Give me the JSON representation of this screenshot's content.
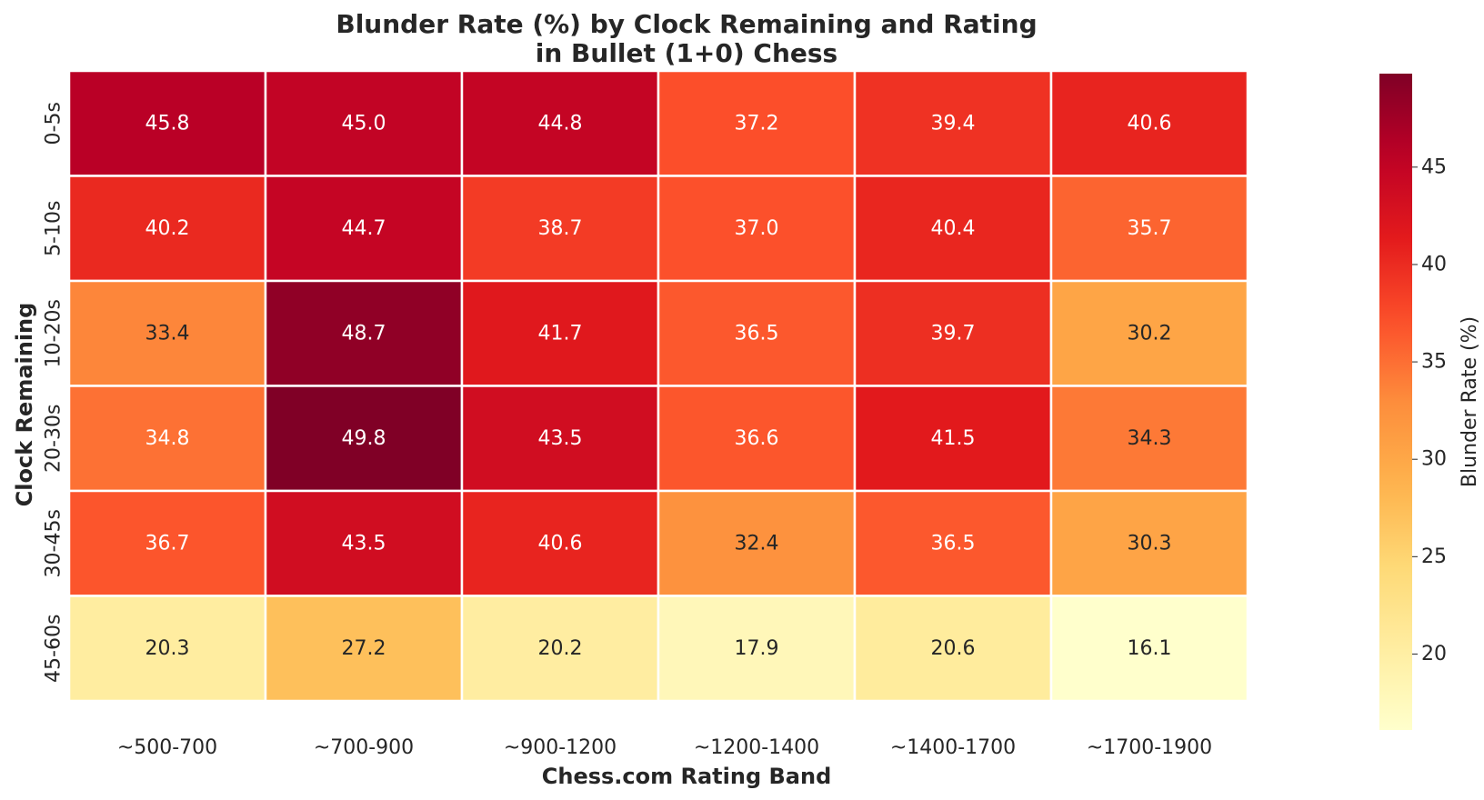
{
  "chart_data": {
    "type": "heatmap",
    "title_line1": "Blunder Rate (%) by Clock Remaining and Rating",
    "title_line2": "in Bullet (1+0) Chess",
    "xlabel": "Chess.com Rating Band",
    "ylabel": "Clock Remaining",
    "x_categories": [
      "~500-700",
      "~700-900",
      "~900-1200",
      "~1200-1400",
      "~1400-1700",
      "~1700-1900"
    ],
    "y_categories": [
      "0-5s",
      "5-10s",
      "10-20s",
      "20-30s",
      "30-45s",
      "45-60s"
    ],
    "values": [
      [
        45.8,
        45.0,
        44.8,
        37.2,
        39.4,
        40.6
      ],
      [
        40.2,
        44.7,
        38.7,
        37.0,
        40.4,
        35.7
      ],
      [
        33.4,
        48.7,
        41.7,
        36.5,
        39.7,
        30.2
      ],
      [
        34.8,
        49.8,
        43.5,
        36.6,
        41.5,
        34.3
      ],
      [
        36.7,
        43.5,
        40.6,
        32.4,
        36.5,
        30.3
      ],
      [
        20.3,
        27.2,
        20.2,
        17.9,
        20.6,
        16.1
      ]
    ],
    "colormap": "YlOrRd",
    "vmin": 16.1,
    "vmax": 49.8,
    "colorbar": {
      "label": "Blunder Rate (%)",
      "ticks": [
        20,
        25,
        30,
        35,
        40,
        45
      ]
    },
    "annotations": true,
    "grid": false
  }
}
